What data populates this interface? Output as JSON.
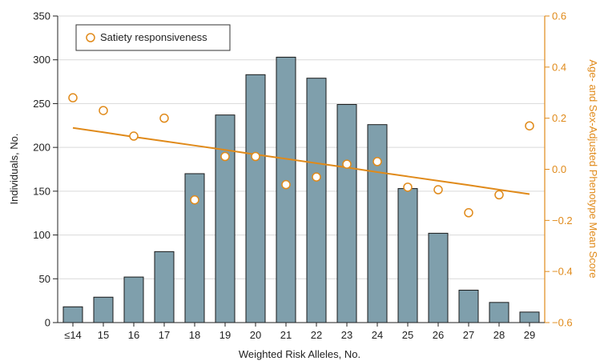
{
  "chart_data": {
    "type": "bar",
    "categories": [
      "≤14",
      "15",
      "16",
      "17",
      "18",
      "19",
      "20",
      "21",
      "22",
      "23",
      "24",
      "25",
      "26",
      "27",
      "28",
      "29"
    ],
    "series": [
      {
        "type": "bar",
        "values": [
          18,
          29,
          52,
          81,
          170,
          237,
          283,
          303,
          279,
          249,
          226,
          153,
          102,
          37,
          23,
          12
        ]
      },
      {
        "type": "scatter",
        "name": "Satiety responsiveness",
        "values": [
          0.28,
          0.23,
          0.13,
          0.2,
          -0.12,
          0.05,
          0.05,
          -0.06,
          -0.03,
          0.02,
          0.03,
          -0.07,
          -0.08,
          -0.17,
          -0.1,
          0.17
        ]
      },
      {
        "type": "line",
        "values": [
          0.162,
          0.145,
          0.127,
          0.11,
          0.093,
          0.076,
          0.058,
          0.041,
          0.024,
          0.007,
          -0.011,
          -0.028,
          -0.045,
          -0.062,
          -0.08,
          -0.097
        ]
      }
    ],
    "xlabel": "Weighted Risk Alleles, No.",
    "ylabel": "Individuals, No.",
    "y2label": "Age- and Sex-Adjusted Phenotype Mean Score",
    "ylim": [
      0,
      350
    ],
    "y2lim": [
      -0.6,
      0.6
    ],
    "yticks": [
      "0",
      "50",
      "100",
      "150",
      "200",
      "250",
      "300",
      "350"
    ],
    "y2ticks": [
      "−0.6",
      "−0.4",
      "−0.2",
      "0.0",
      "0.2",
      "0.4",
      "0.6"
    ],
    "legend": {
      "placement": "top-left",
      "label": "Satiety responsiveness"
    },
    "grid": "horizontal",
    "colors": {
      "bar": "#7f9fac",
      "bar_edge": "#1a1a1a",
      "accent": "#e08a1a",
      "grid": "#d9d9d9"
    }
  }
}
